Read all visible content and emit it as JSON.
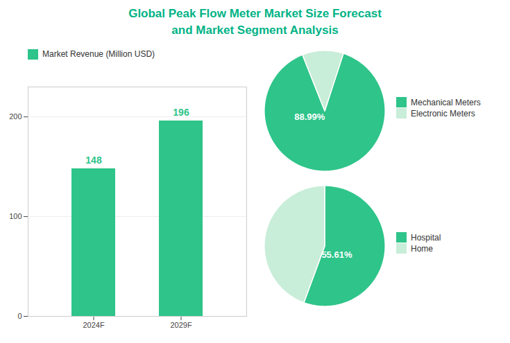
{
  "chart_data": [
    {
      "type": "bar",
      "title": "Global Peak Flow Meter Market Size Forecast\nand Market Segment Analysis",
      "categories": [
        "2024F",
        "2029F"
      ],
      "series": [
        {
          "name": "Market Revenue (Million USD)",
          "color": "#2EC48A",
          "values": [
            148,
            196
          ]
        }
      ],
      "ylim": [
        0,
        230
      ],
      "yticks": [
        0,
        100,
        200
      ],
      "grid": true,
      "data_labels": true,
      "legend": "upper left"
    },
    {
      "type": "pie",
      "categories": [
        "Mechanical Meters",
        "Electronic Meters"
      ],
      "values": [
        88.99,
        11.01
      ],
      "value_labels": [
        "88.99%",
        null
      ],
      "colors": [
        "#2EC48A",
        "#C8EDD8"
      ],
      "data_labels": true,
      "legend": "right"
    },
    {
      "type": "pie",
      "categories": [
        "Hospital",
        "Home"
      ],
      "values": [
        55.61,
        44.39
      ],
      "value_labels": [
        "55.61%",
        null
      ],
      "colors": [
        "#2EC48A",
        "#C8EDD8"
      ],
      "data_labels": true,
      "legend": "right"
    }
  ]
}
